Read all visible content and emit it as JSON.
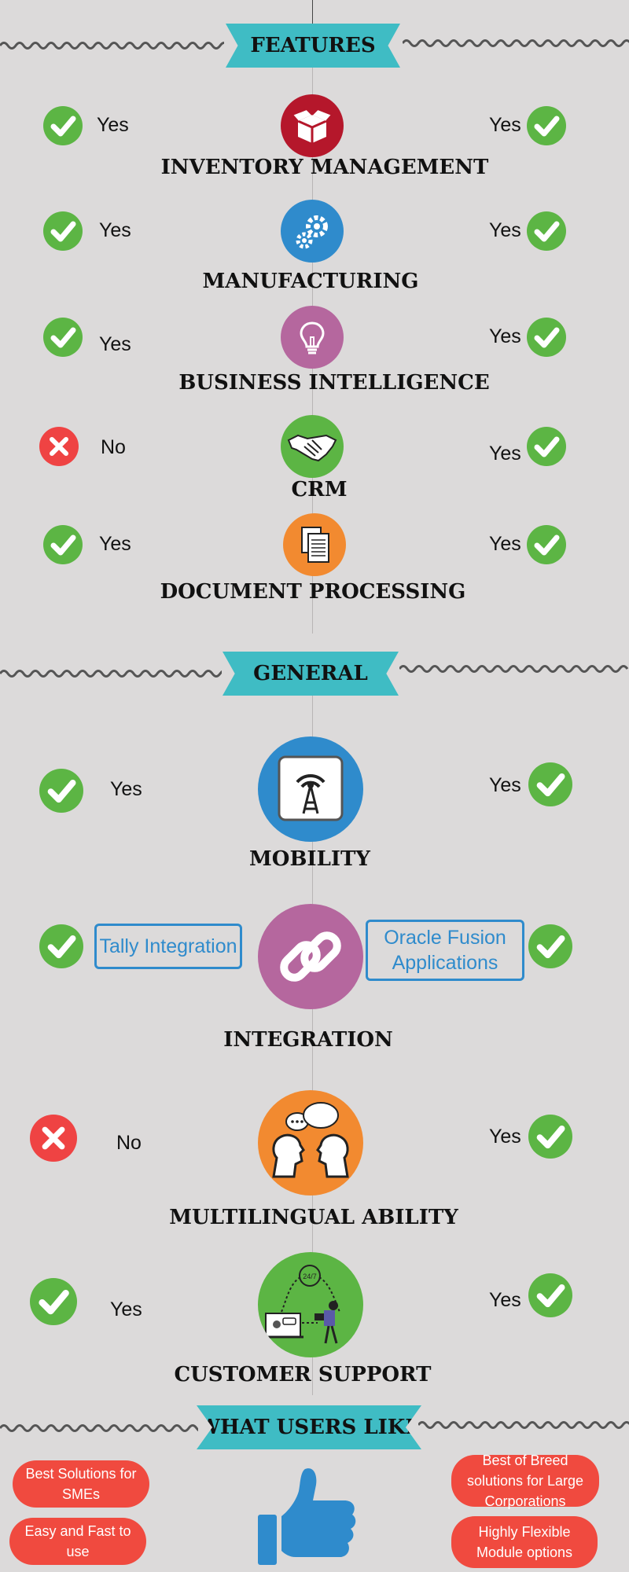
{
  "sections": {
    "features": "FEATURES",
    "general": "GENERAL",
    "what_users_like": "WHAT USERS LIKE"
  },
  "features": [
    {
      "title": "INVENTORY MANAGEMENT",
      "icon": "open-box-icon",
      "left": "Yes",
      "right": "Yes"
    },
    {
      "title": "MANUFACTURING",
      "icon": "gears-icon",
      "left": "Yes",
      "right": "Yes"
    },
    {
      "title": "BUSINESS INTELLIGENCE",
      "icon": "lightbulb-icon",
      "left": "Yes",
      "right": "Yes"
    },
    {
      "title": "CRM",
      "icon": "handshake-icon",
      "left": "No",
      "right": "Yes"
    },
    {
      "title": "DOCUMENT PROCESSING",
      "icon": "documents-icon",
      "left": "Yes",
      "right": "Yes"
    }
  ],
  "general": [
    {
      "title": "MOBILITY",
      "icon": "signal-tower-icon",
      "left": "Yes",
      "right": "Yes"
    },
    {
      "title": "INTEGRATION",
      "icon": "link-chain-icon",
      "left_box": "Tally Integration",
      "right_box_line1": "Oracle Fusion",
      "right_box_line2": "Applications"
    },
    {
      "title": "MULTILINGUAL ABILITY",
      "icon": "speaking-heads-icon",
      "left": "No",
      "right": "Yes"
    },
    {
      "title": "CUSTOMER SUPPORT",
      "icon": "support-desk-icon",
      "left": "Yes",
      "right": "Yes",
      "badge": "24/7"
    }
  ],
  "likes": {
    "left": [
      "Best Solutions for SMEs",
      "Easy and Fast to use"
    ],
    "right": [
      "Best of Breed solutions for Large Corporations",
      "Highly Flexible Module options"
    ],
    "icon": "thumbs-up-icon"
  },
  "colors": {
    "background": "#dcdada",
    "banner": "#3fbcc4",
    "check": "#5cb544",
    "cross": "#ef4343",
    "inventory": "#b5172b",
    "manufacturing": "#2f8bcc",
    "bi": "#b5679e",
    "crm": "#5cb544",
    "documents": "#f28a30",
    "pill": "#f04a3f"
  }
}
